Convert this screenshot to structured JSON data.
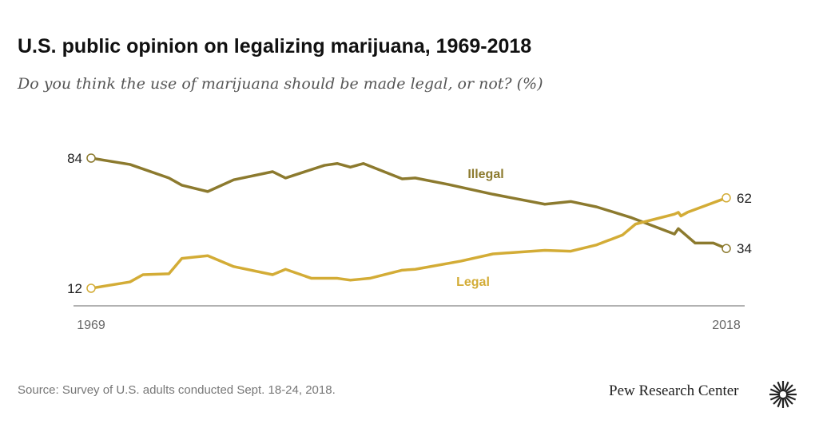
{
  "title": "U.S. public opinion on legalizing marijuana, 1969-2018",
  "subtitle": "Do you think the use of marijuana should be made legal, or not? (%)",
  "source": "Source: Survey of U.S. adults conducted Sept. 18-24, 2018.",
  "brand": "Pew Research Center",
  "chart_data": {
    "type": "line",
    "title": "U.S. public opinion on legalizing marijuana, 1969-2018",
    "xlim": [
      1969,
      2018
    ],
    "ylim": [
      5,
      90
    ],
    "x_tick_labels": [
      "1969",
      "2018"
    ],
    "grid": false,
    "series": [
      {
        "name": "Illegal",
        "color": "#8c7a2e",
        "start_label": "84",
        "end_label": "34",
        "x": [
          1969,
          1972,
          1975,
          1976,
          1978,
          1980,
          1983,
          1984,
          1987,
          1988,
          1989,
          1990,
          1993,
          1994,
          1996.5,
          2000,
          2004,
          2006,
          2008,
          2010.7,
          2014,
          2014.3,
          2015.6,
          2017,
          2018
        ],
        "y": [
          84,
          80.5,
          73,
          69,
          65.5,
          72,
          76.5,
          73,
          80,
          81,
          79,
          81,
          72.5,
          73,
          69.5,
          64,
          58.5,
          60,
          57,
          51,
          42,
          45,
          37,
          37,
          34
        ]
      },
      {
        "name": "Legal",
        "color": "#d3ac36",
        "start_label": "12",
        "end_label": "62",
        "x": [
          1969,
          1972,
          1973,
          1975,
          1976,
          1978,
          1980,
          1983,
          1984,
          1986,
          1988,
          1989,
          1990.5,
          1993,
          1994,
          1997.5,
          2000,
          2004,
          2006,
          2008,
          2010,
          2011,
          2014,
          2014.3,
          2014.5,
          2015,
          2018
        ],
        "y": [
          12,
          15.5,
          19.5,
          20,
          28.5,
          30,
          24,
          19.5,
          22.5,
          17.5,
          17.5,
          16.5,
          17.5,
          22,
          22.5,
          27,
          31,
          33,
          32.5,
          36,
          41.5,
          47.5,
          53,
          54,
          52,
          54,
          62
        ]
      }
    ]
  }
}
